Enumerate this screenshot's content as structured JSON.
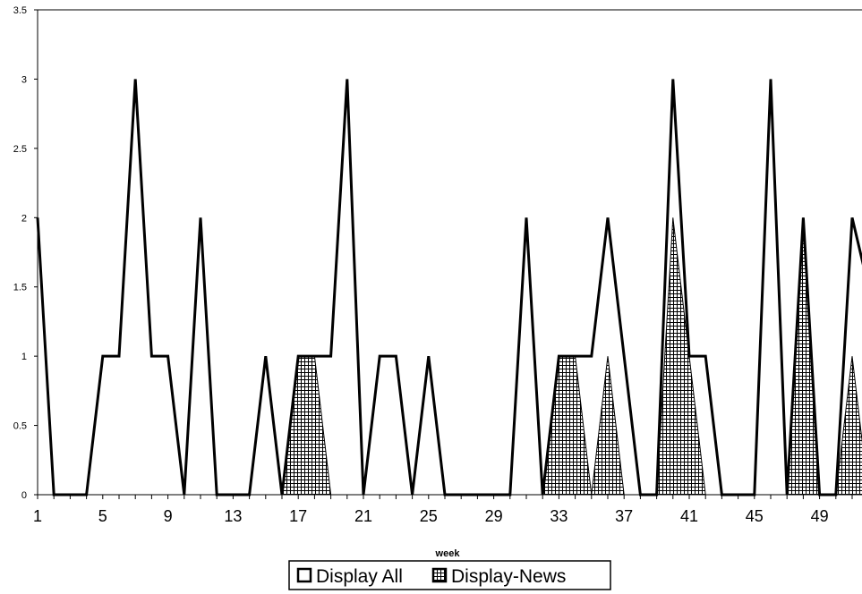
{
  "chart_data": {
    "type": "area",
    "xlabel": "week",
    "ylabel": "",
    "ylim": [
      0,
      3.5
    ],
    "ytick_step": 0.5,
    "x_tick_labels": [
      "1",
      "5",
      "9",
      "13",
      "17",
      "21",
      "25",
      "29",
      "33",
      "37",
      "41",
      "45",
      "49"
    ],
    "x": [
      1,
      2,
      3,
      4,
      5,
      6,
      7,
      8,
      9,
      10,
      11,
      12,
      13,
      14,
      15,
      16,
      17,
      18,
      19,
      20,
      21,
      22,
      23,
      24,
      25,
      26,
      27,
      28,
      29,
      30,
      31,
      32,
      33,
      34,
      35,
      36,
      37,
      38,
      39,
      40,
      41,
      42,
      43,
      44,
      45,
      46,
      47,
      48,
      49,
      50,
      51,
      52
    ],
    "series": [
      {
        "name": "Display All",
        "values": [
          2,
          0,
          0,
          0,
          1,
          1,
          3,
          1,
          1,
          0,
          2,
          0,
          0,
          0,
          1,
          0,
          1,
          1,
          1,
          3,
          0,
          1,
          1,
          0,
          1,
          0,
          0,
          0,
          0,
          0,
          2,
          0,
          1,
          1,
          1,
          2,
          1,
          0,
          0,
          3,
          1,
          1,
          0,
          0,
          0,
          3,
          0,
          2,
          0,
          0,
          2,
          1.5
        ]
      },
      {
        "name": "Display-News",
        "values": [
          0,
          0,
          0,
          0,
          0,
          0,
          0,
          0,
          0,
          0,
          0,
          0,
          0,
          0,
          0,
          0,
          1,
          1,
          0,
          0,
          0,
          0,
          0,
          0,
          0,
          0,
          0,
          0,
          0,
          0,
          0,
          0,
          1,
          1,
          0,
          1,
          0,
          0,
          0,
          2,
          1,
          0,
          0,
          0,
          0,
          0,
          0,
          2,
          0,
          0,
          1,
          0
        ]
      }
    ],
    "legend_position": "bottom",
    "grid": false
  }
}
